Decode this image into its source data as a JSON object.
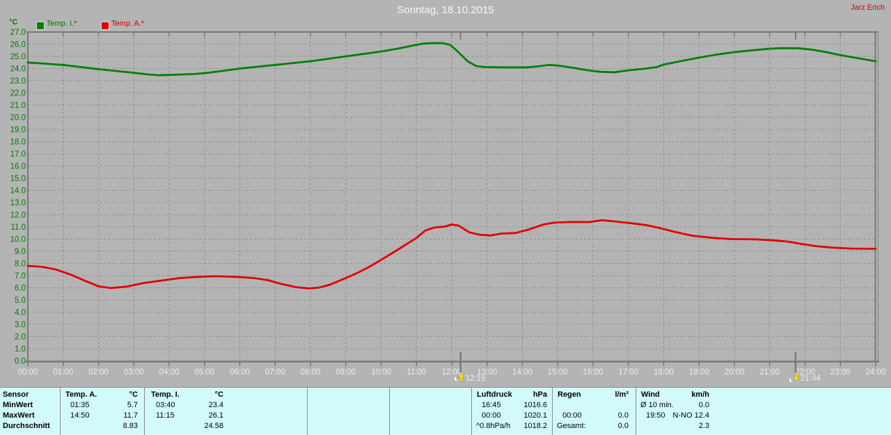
{
  "header": {
    "title": "Sonntag, 18.10.2015",
    "author": "Jarz Erich"
  },
  "chart_data": {
    "type": "line",
    "title": "Sonntag, 18.10.2015",
    "y_unit": "°C",
    "xlim": [
      0,
      24
    ],
    "ylim": [
      0,
      27
    ],
    "grid": true,
    "legend_position": "top-left",
    "x_ticks": [
      "00:00",
      "01:00",
      "02:00",
      "03:00",
      "04:00",
      "05:00",
      "06:00",
      "07:00",
      "08:00",
      "09:00",
      "10:00",
      "11:00",
      "12:00",
      "13:00",
      "14:00",
      "15:00",
      "16:00",
      "17:00",
      "18:00",
      "19:00",
      "20:00",
      "21:00",
      "22:00",
      "23:00",
      "24:00"
    ],
    "y_ticks": [
      "27.0",
      "26.0",
      "25.0",
      "24.0",
      "23.0",
      "22.0",
      "21.0",
      "20.0",
      "19.0",
      "18.0",
      "17.0",
      "16.0",
      "15.0",
      "14.0",
      "13.0",
      "12.0",
      "11.0",
      "10.0",
      "9.0",
      "8.0",
      "7.0",
      "6.0",
      "5.0",
      "4.0",
      "3.0",
      "2.0",
      "1.0",
      "0.0"
    ],
    "series": [
      {
        "name": "Temp. I.*",
        "color": "#008000",
        "points": [
          [
            0,
            24.5
          ],
          [
            0.5,
            24.4
          ],
          [
            1,
            24.3
          ],
          [
            1.5,
            24.12
          ],
          [
            2,
            23.95
          ],
          [
            2.5,
            23.8
          ],
          [
            3,
            23.65
          ],
          [
            3.4,
            23.52
          ],
          [
            3.7,
            23.45
          ],
          [
            4.2,
            23.5
          ],
          [
            4.7,
            23.55
          ],
          [
            5,
            23.62
          ],
          [
            5.5,
            23.8
          ],
          [
            6,
            24.0
          ],
          [
            6.5,
            24.15
          ],
          [
            7,
            24.3
          ],
          [
            7.5,
            24.45
          ],
          [
            8,
            24.6
          ],
          [
            8.5,
            24.8
          ],
          [
            9,
            25.0
          ],
          [
            9.5,
            25.2
          ],
          [
            10,
            25.4
          ],
          [
            10.5,
            25.65
          ],
          [
            11,
            25.95
          ],
          [
            11.2,
            26.05
          ],
          [
            11.5,
            26.1
          ],
          [
            11.75,
            26.08
          ],
          [
            11.95,
            25.95
          ],
          [
            12.15,
            25.45
          ],
          [
            12.45,
            24.6
          ],
          [
            12.7,
            24.2
          ],
          [
            12.95,
            24.12
          ],
          [
            13.5,
            24.1
          ],
          [
            14.1,
            24.1
          ],
          [
            14.45,
            24.18
          ],
          [
            14.75,
            24.3
          ],
          [
            15,
            24.25
          ],
          [
            15.4,
            24.08
          ],
          [
            15.8,
            23.88
          ],
          [
            16.2,
            23.73
          ],
          [
            16.6,
            23.7
          ],
          [
            17,
            23.85
          ],
          [
            17.5,
            24.0
          ],
          [
            17.8,
            24.12
          ],
          [
            18,
            24.33
          ],
          [
            18.5,
            24.62
          ],
          [
            19,
            24.9
          ],
          [
            19.5,
            25.15
          ],
          [
            20,
            25.35
          ],
          [
            20.5,
            25.5
          ],
          [
            21,
            25.63
          ],
          [
            21.3,
            25.67
          ],
          [
            21.8,
            25.67
          ],
          [
            22.2,
            25.55
          ],
          [
            22.6,
            25.35
          ],
          [
            23,
            25.1
          ],
          [
            23.5,
            24.85
          ],
          [
            24,
            24.6
          ]
        ]
      },
      {
        "name": "Temp. A.*",
        "color": "#e00000",
        "points": [
          [
            0,
            7.8
          ],
          [
            0.4,
            7.72
          ],
          [
            0.8,
            7.5
          ],
          [
            1.2,
            7.1
          ],
          [
            1.6,
            6.6
          ],
          [
            2,
            6.12
          ],
          [
            2.35,
            5.98
          ],
          [
            2.8,
            6.1
          ],
          [
            3.3,
            6.4
          ],
          [
            3.8,
            6.6
          ],
          [
            4.3,
            6.8
          ],
          [
            4.8,
            6.9
          ],
          [
            5.3,
            6.95
          ],
          [
            5.9,
            6.9
          ],
          [
            6.4,
            6.8
          ],
          [
            6.8,
            6.62
          ],
          [
            7.2,
            6.3
          ],
          [
            7.6,
            6.05
          ],
          [
            7.95,
            5.95
          ],
          [
            8.25,
            6.02
          ],
          [
            8.55,
            6.25
          ],
          [
            9,
            6.8
          ],
          [
            9.35,
            7.25
          ],
          [
            9.7,
            7.78
          ],
          [
            10,
            8.3
          ],
          [
            10.4,
            9.0
          ],
          [
            10.7,
            9.55
          ],
          [
            11,
            10.1
          ],
          [
            11.25,
            10.7
          ],
          [
            11.5,
            10.95
          ],
          [
            11.8,
            11.02
          ],
          [
            12,
            11.2
          ],
          [
            12.2,
            11.1
          ],
          [
            12.5,
            10.55
          ],
          [
            12.8,
            10.35
          ],
          [
            13.1,
            10.3
          ],
          [
            13.4,
            10.45
          ],
          [
            13.8,
            10.5
          ],
          [
            14.2,
            10.8
          ],
          [
            14.6,
            11.2
          ],
          [
            14.9,
            11.35
          ],
          [
            15.3,
            11.4
          ],
          [
            15.9,
            11.4
          ],
          [
            16.25,
            11.55
          ],
          [
            16.7,
            11.42
          ],
          [
            17.1,
            11.3
          ],
          [
            17.5,
            11.15
          ],
          [
            17.9,
            10.9
          ],
          [
            18.3,
            10.6
          ],
          [
            18.8,
            10.28
          ],
          [
            19.4,
            10.1
          ],
          [
            19.9,
            10.0
          ],
          [
            20.6,
            9.98
          ],
          [
            21.1,
            9.9
          ],
          [
            21.5,
            9.8
          ],
          [
            21.9,
            9.6
          ],
          [
            22.3,
            9.42
          ],
          [
            22.8,
            9.3
          ],
          [
            23.3,
            9.22
          ],
          [
            24,
            9.2
          ]
        ]
      }
    ],
    "time_markers": [
      {
        "time": "12:15",
        "icon": "moonrise-icon"
      },
      {
        "time": "21:44",
        "icon": "moonset-icon"
      }
    ]
  },
  "bottom_table": {
    "row_labels": [
      "Sensor",
      "MinWert",
      "MaxWert",
      "Durchschnitt"
    ],
    "columns": [
      {
        "header": "Temp. A.",
        "unit": "°C",
        "rows": [
          [
            "01:35",
            "5.7"
          ],
          [
            "14:50",
            "11.7"
          ],
          [
            "",
            "8.83"
          ]
        ]
      },
      {
        "header": "Temp. I.",
        "unit": "°C",
        "rows": [
          [
            "03:40",
            "23.4"
          ],
          [
            "11:15",
            "26.1"
          ],
          [
            "",
            "24.58"
          ]
        ]
      },
      {
        "header": "Luftdruck",
        "unit": "hPa",
        "rows": [
          [
            "16:45",
            "1016.6"
          ],
          [
            "00:00",
            "1020.1"
          ],
          [
            "^0.8hPa/h",
            "1018.2"
          ]
        ]
      },
      {
        "header": "Regen",
        "unit": "l/m²",
        "rows": [
          [
            "",
            ""
          ],
          [
            "00:00",
            "0.0"
          ],
          [
            "Gesamt:",
            "0.0"
          ]
        ]
      },
      {
        "header": "Wind",
        "unit": "km/h",
        "rows": [
          [
            "Ø 10 min.",
            "0.0"
          ],
          [
            "19:50",
            "N-NO 12.4"
          ],
          [
            "",
            "2.3"
          ]
        ]
      }
    ]
  }
}
